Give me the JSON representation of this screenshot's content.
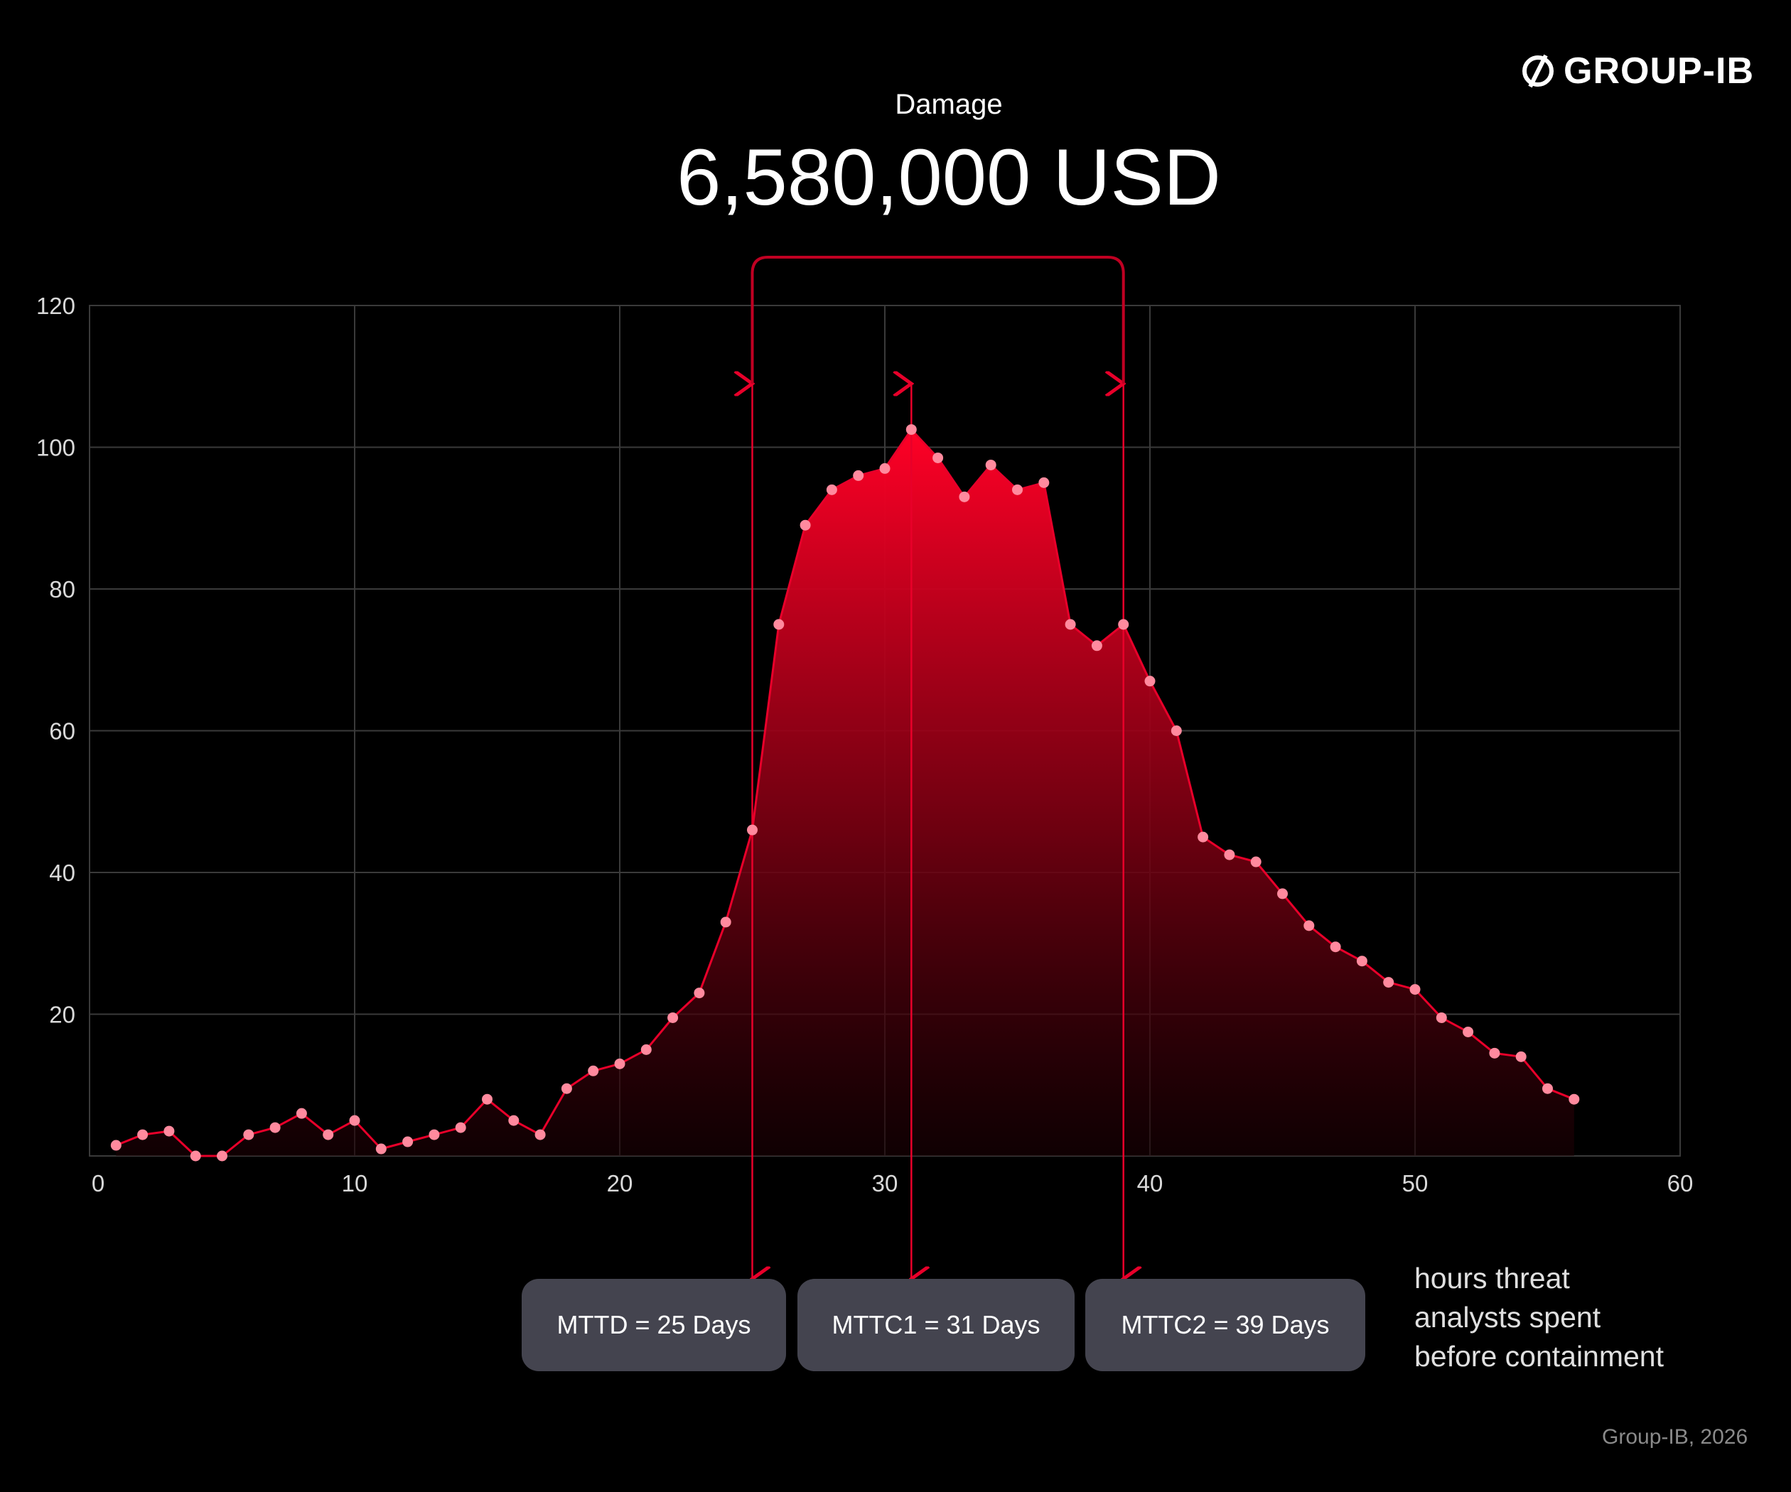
{
  "brand": {
    "name": "GROUP-IB",
    "logo_icon": "slashed-circle-icon"
  },
  "header": {
    "label": "Damage",
    "value": "6,580,000 USD"
  },
  "note": {
    "lines": [
      "hours threat",
      "analysts spent",
      "before containment"
    ]
  },
  "credit": "Group-IB, 2026",
  "markers": [
    {
      "label": "MTTD = 25 Days",
      "day": 25
    },
    {
      "label": "MTTC1 = 31 Days",
      "day": 31
    },
    {
      "label": "MTTC2 = 39 Days",
      "day": 39
    }
  ],
  "colors": {
    "accent": "#e8002a",
    "point": "#ff8a9e",
    "grid": "#3a3a3a",
    "pill": "#44444f"
  },
  "chart_data": {
    "type": "area",
    "title": "Damage",
    "xlabel": "",
    "ylabel": "",
    "xlim": [
      0,
      60
    ],
    "ylim": [
      0,
      120
    ],
    "x_ticks": [
      0,
      10,
      20,
      30,
      40,
      50,
      60
    ],
    "y_ticks": [
      20,
      40,
      60,
      80,
      100,
      120
    ],
    "grid": true,
    "x": [
      1,
      2,
      3,
      4,
      5,
      6,
      7,
      8,
      9,
      10,
      11,
      12,
      13,
      14,
      15,
      16,
      17,
      18,
      19,
      20,
      21,
      22,
      23,
      24,
      25,
      26,
      27,
      28,
      29,
      30,
      31,
      32,
      33,
      34,
      35,
      36,
      37,
      38,
      39,
      40,
      41,
      42,
      43,
      44,
      45,
      46,
      47,
      48,
      49,
      50,
      51,
      52,
      53,
      54,
      55,
      56
    ],
    "y": [
      1.5,
      3,
      3.5,
      0,
      0,
      3,
      4,
      6,
      3,
      5,
      1,
      2,
      3,
      4,
      8,
      5,
      3,
      9.5,
      12,
      13,
      15,
      19.5,
      23,
      33,
      46,
      75,
      89,
      94,
      96,
      97,
      102.5,
      98.5,
      93,
      97.5,
      94,
      95,
      75,
      72,
      75,
      67,
      60,
      45,
      42.5,
      41.5,
      37,
      32.5,
      29.5,
      27.5,
      24.5,
      23.5,
      19.5,
      17.5,
      14.5,
      14,
      9.5,
      8
    ]
  }
}
